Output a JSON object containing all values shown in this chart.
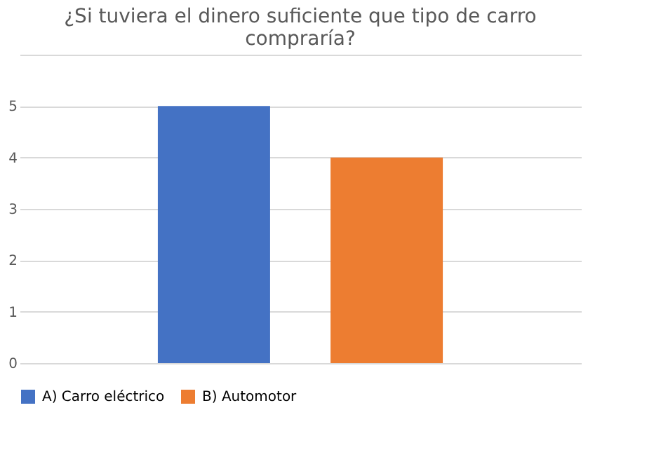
{
  "chart_data": {
    "type": "bar",
    "title": "¿Si tuviera el dinero suficiente  que tipo de carro compraría?",
    "categories": [
      null
    ],
    "series": [
      {
        "name": "A) Carro eléctrico",
        "color": "#4472c4",
        "values": [
          5
        ]
      },
      {
        "name": "B) Automotor",
        "color": "#ed7d31",
        "values": [
          4
        ]
      }
    ],
    "ylim": [
      0,
      6
    ],
    "yticks": [
      0,
      1,
      2,
      3,
      4,
      5,
      {
        "value": 6,
        "label": null
      }
    ],
    "grid": "y",
    "legend": "bottom",
    "tick_labels": "y"
  }
}
